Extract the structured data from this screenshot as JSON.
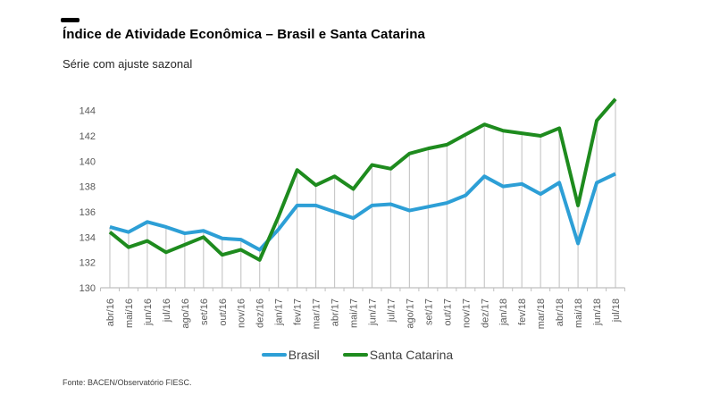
{
  "page": {
    "title": "Índice de Atividade Econômica – Brasil e Santa Catarina",
    "subtitle": "Série com ajuste sazonal",
    "source": "Fonte: BACEN/Observatório FIESC."
  },
  "legend": [
    {
      "label": "Brasil",
      "color": "#2D9FD6"
    },
    {
      "label": "Santa Catarina",
      "color": "#1E8B1E"
    }
  ],
  "chart_data": {
    "type": "line",
    "title": "Índice de Atividade Econômica – Brasil e Santa Catarina",
    "subtitle": "Série com ajuste sazonal",
    "categories": [
      "abr/16",
      "mai/16",
      "jun/16",
      "jul/16",
      "ago/16",
      "set/16",
      "out/16",
      "nov/16",
      "dez/16",
      "jan/17",
      "fev/17",
      "mar/17",
      "abr/17",
      "mai/17",
      "jun/17",
      "jul/17",
      "ago/17",
      "set/17",
      "out/17",
      "nov/17",
      "dez/17",
      "jan/18",
      "fev/18",
      "mar/18",
      "abr/18",
      "mai/18",
      "jun/18",
      "jul/18"
    ],
    "series": [
      {
        "name": "Brasil",
        "color": "#2D9FD6",
        "values": [
          134.8,
          134.4,
          135.2,
          134.8,
          134.3,
          134.5,
          133.9,
          133.8,
          133.0,
          134.6,
          136.5,
          136.5,
          136.0,
          135.5,
          136.5,
          136.6,
          136.1,
          136.4,
          136.7,
          137.3,
          138.8,
          138.0,
          138.2,
          137.4,
          138.3,
          133.5,
          138.3,
          139.0
        ]
      },
      {
        "name": "Santa Catarina",
        "color": "#1E8B1E",
        "values": [
          134.4,
          133.2,
          133.7,
          132.8,
          133.4,
          134.0,
          132.6,
          133.0,
          132.2,
          135.6,
          139.3,
          138.1,
          138.8,
          137.8,
          139.7,
          139.4,
          140.6,
          141.0,
          141.3,
          142.1,
          142.9,
          142.4,
          142.2,
          142.0,
          142.6,
          136.5,
          143.2,
          144.9
        ]
      }
    ],
    "y_ticks": [
      130,
      132,
      134,
      136,
      138,
      140,
      142,
      144
    ],
    "ylim": [
      130,
      146
    ],
    "xlabel": "",
    "ylabel": "",
    "grid": "vertical-droplines",
    "legend_position": "bottom",
    "colors": {
      "axis": "#bfbfbf",
      "dropline": "#c9c9c9",
      "tick_text": "#595959"
    }
  }
}
